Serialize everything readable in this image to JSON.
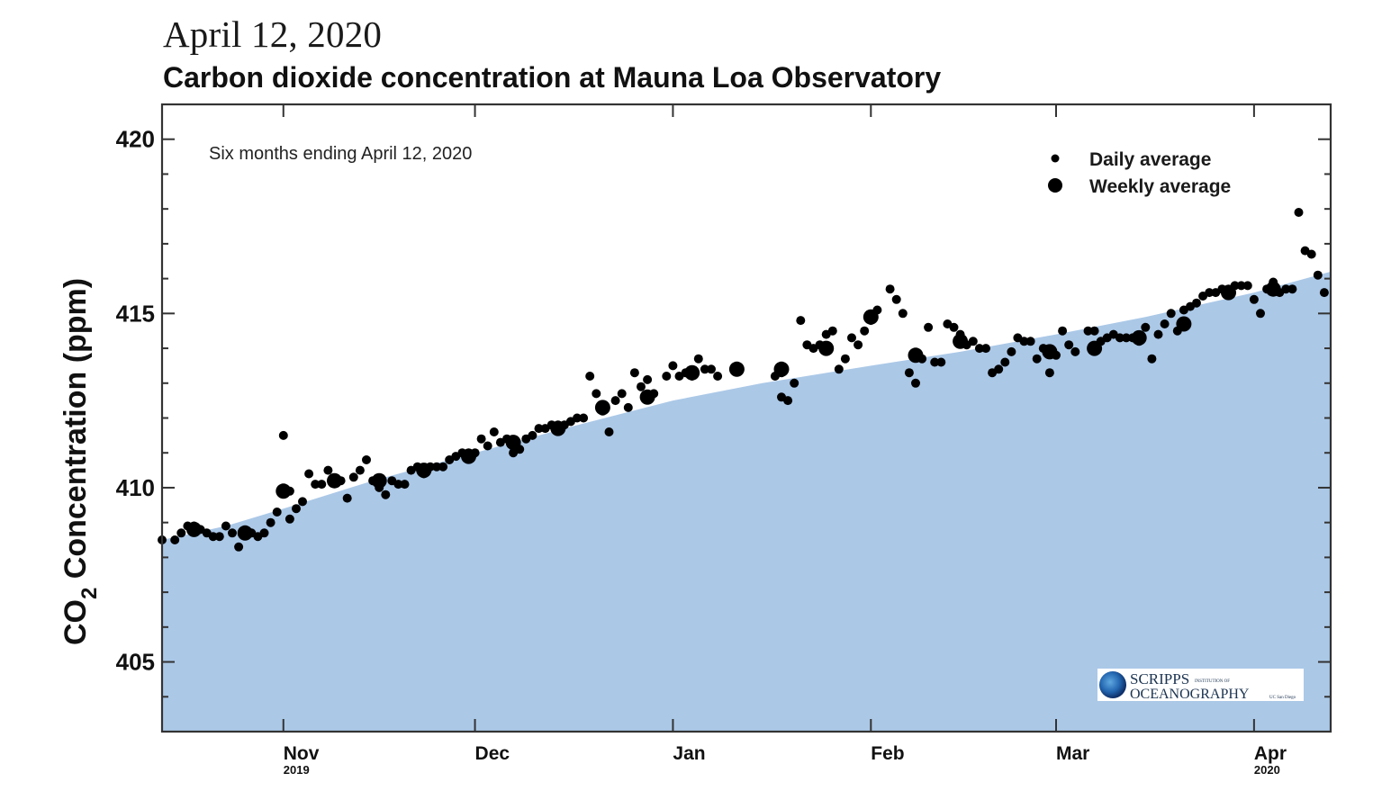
{
  "header": {
    "date": "April 12, 2020",
    "title": "Carbon dioxide concentration at Mauna Loa Observatory"
  },
  "colors": {
    "trend_fill": "#abc8e7",
    "points": "#000000",
    "axis": "#333333"
  },
  "logo": {
    "name": "SCRIPPS",
    "subtitle_small": "INSTITUTION OF",
    "line2": "OCEANOGRAPHY",
    "tag": "UC San Diego"
  },
  "chart_data": {
    "type": "scatter",
    "title": "Carbon dioxide concentration at Mauna Loa Observatory",
    "subtitle": "Six months ending April 12, 2020",
    "annotation": "Six months ending April 12, 2020",
    "xlabel": "",
    "ylabel": "CO2 Concentration (ppm)",
    "ylabel_parts": {
      "main": "CO",
      "sub": "2",
      "rest": " Concentration (ppm)"
    },
    "xlim": [
      "2019-10-13",
      "2020-04-13"
    ],
    "ylim": [
      403,
      421
    ],
    "yticks": [
      405,
      410,
      415,
      420
    ],
    "yminor_step": 1,
    "xticks": [
      {
        "date": "2019-11-01",
        "label": "Nov",
        "year": "2019"
      },
      {
        "date": "2019-12-01",
        "label": "Dec",
        "year": ""
      },
      {
        "date": "2020-01-01",
        "label": "Jan",
        "year": ""
      },
      {
        "date": "2020-02-01",
        "label": "Feb",
        "year": ""
      },
      {
        "date": "2020-03-01",
        "label": "Mar",
        "year": ""
      },
      {
        "date": "2020-04-01",
        "label": "Apr",
        "year": "2020"
      }
    ],
    "grid": false,
    "legend": {
      "position": "top-right",
      "entries": [
        {
          "label": "Daily average",
          "marker": "small-dot"
        },
        {
          "label": "Weekly average",
          "marker": "large-dot"
        }
      ]
    },
    "trend": {
      "name": "Seasonal trend (shaded)",
      "points": [
        [
          "2019-10-13",
          408.5
        ],
        [
          "2019-10-23",
          408.9
        ],
        [
          "2019-11-01",
          409.4
        ],
        [
          "2019-11-15",
          410.2
        ],
        [
          "2019-12-01",
          411.0
        ],
        [
          "2019-12-15",
          411.7
        ],
        [
          "2020-01-01",
          412.5
        ],
        [
          "2020-01-15",
          413.0
        ],
        [
          "2020-02-01",
          413.5
        ],
        [
          "2020-02-15",
          413.9
        ],
        [
          "2020-03-01",
          414.4
        ],
        [
          "2020-03-15",
          414.9
        ],
        [
          "2020-04-01",
          415.6
        ],
        [
          "2020-04-13",
          416.2
        ]
      ]
    },
    "series": [
      {
        "name": "Daily average",
        "points": [
          [
            "2019-10-13",
            408.5
          ],
          [
            "2019-10-15",
            408.5
          ],
          [
            "2019-10-16",
            408.7
          ],
          [
            "2019-10-17",
            408.9
          ],
          [
            "2019-10-18",
            408.9
          ],
          [
            "2019-10-19",
            408.8
          ],
          [
            "2019-10-20",
            408.7
          ],
          [
            "2019-10-21",
            408.6
          ],
          [
            "2019-10-22",
            408.6
          ],
          [
            "2019-10-23",
            408.9
          ],
          [
            "2019-10-24",
            408.7
          ],
          [
            "2019-10-25",
            408.3
          ],
          [
            "2019-10-26",
            408.7
          ],
          [
            "2019-10-27",
            408.7
          ],
          [
            "2019-10-28",
            408.6
          ],
          [
            "2019-10-29",
            408.7
          ],
          [
            "2019-10-30",
            409.0
          ],
          [
            "2019-10-31",
            409.3
          ],
          [
            "2019-11-01",
            409.9
          ],
          [
            "2019-11-01",
            411.5
          ],
          [
            "2019-11-02",
            409.9
          ],
          [
            "2019-11-02",
            409.1
          ],
          [
            "2019-11-03",
            409.4
          ],
          [
            "2019-11-04",
            409.6
          ],
          [
            "2019-11-05",
            410.4
          ],
          [
            "2019-11-06",
            410.1
          ],
          [
            "2019-11-07",
            410.1
          ],
          [
            "2019-11-08",
            410.5
          ],
          [
            "2019-11-09",
            410.2
          ],
          [
            "2019-11-10",
            410.2
          ],
          [
            "2019-11-11",
            409.7
          ],
          [
            "2019-11-12",
            410.3
          ],
          [
            "2019-11-13",
            410.5
          ],
          [
            "2019-11-14",
            410.8
          ],
          [
            "2019-11-15",
            410.2
          ],
          [
            "2019-11-16",
            410.0
          ],
          [
            "2019-11-17",
            409.8
          ],
          [
            "2019-11-18",
            410.2
          ],
          [
            "2019-11-19",
            410.1
          ],
          [
            "2019-11-20",
            410.1
          ],
          [
            "2019-11-21",
            410.5
          ],
          [
            "2019-11-22",
            410.6
          ],
          [
            "2019-11-23",
            410.4
          ],
          [
            "2019-11-24",
            410.6
          ],
          [
            "2019-11-25",
            410.6
          ],
          [
            "2019-11-26",
            410.6
          ],
          [
            "2019-11-27",
            410.8
          ],
          [
            "2019-11-28",
            410.9
          ],
          [
            "2019-11-29",
            411.0
          ],
          [
            "2019-11-30",
            411.0
          ],
          [
            "2019-12-01",
            411.0
          ],
          [
            "2019-12-02",
            411.4
          ],
          [
            "2019-12-03",
            411.2
          ],
          [
            "2019-12-04",
            411.6
          ],
          [
            "2019-12-05",
            411.3
          ],
          [
            "2019-12-06",
            411.4
          ],
          [
            "2019-12-07",
            411.0
          ],
          [
            "2019-12-08",
            411.1
          ],
          [
            "2019-12-09",
            411.4
          ],
          [
            "2019-12-10",
            411.5
          ],
          [
            "2019-12-11",
            411.7
          ],
          [
            "2019-12-12",
            411.7
          ],
          [
            "2019-12-13",
            411.8
          ],
          [
            "2019-12-14",
            411.8
          ],
          [
            "2019-12-15",
            411.8
          ],
          [
            "2019-12-16",
            411.9
          ],
          [
            "2019-12-17",
            412.0
          ],
          [
            "2019-12-18",
            412.0
          ],
          [
            "2019-12-19",
            413.2
          ],
          [
            "2019-12-20",
            412.7
          ],
          [
            "2019-12-21",
            412.2
          ],
          [
            "2019-12-22",
            411.6
          ],
          [
            "2019-12-23",
            412.5
          ],
          [
            "2019-12-24",
            412.7
          ],
          [
            "2019-12-25",
            412.3
          ],
          [
            "2019-12-26",
            413.3
          ],
          [
            "2019-12-27",
            412.9
          ],
          [
            "2019-12-28",
            413.1
          ],
          [
            "2019-12-29",
            412.7
          ],
          [
            "2019-12-31",
            413.2
          ],
          [
            "2020-01-01",
            413.5
          ],
          [
            "2020-01-02",
            413.2
          ],
          [
            "2020-01-03",
            413.3
          ],
          [
            "2020-01-04",
            413.2
          ],
          [
            "2020-01-05",
            413.7
          ],
          [
            "2020-01-06",
            413.4
          ],
          [
            "2020-01-07",
            413.4
          ],
          [
            "2020-01-08",
            413.2
          ],
          [
            "2020-01-17",
            413.2
          ],
          [
            "2020-01-18",
            412.6
          ],
          [
            "2020-01-18",
            413.3
          ],
          [
            "2020-01-19",
            412.5
          ],
          [
            "2020-01-20",
            413.0
          ],
          [
            "2020-01-21",
            414.8
          ],
          [
            "2020-01-22",
            414.1
          ],
          [
            "2020-01-23",
            414.0
          ],
          [
            "2020-01-24",
            414.1
          ],
          [
            "2020-01-25",
            414.4
          ],
          [
            "2020-01-26",
            414.5
          ],
          [
            "2020-01-27",
            413.4
          ],
          [
            "2020-01-28",
            413.7
          ],
          [
            "2020-01-29",
            414.3
          ],
          [
            "2020-01-30",
            414.1
          ],
          [
            "2020-01-31",
            414.5
          ],
          [
            "2020-02-01",
            414.8
          ],
          [
            "2020-02-02",
            415.1
          ],
          [
            "2020-02-04",
            415.7
          ],
          [
            "2020-02-05",
            415.4
          ],
          [
            "2020-02-06",
            415.0
          ],
          [
            "2020-02-07",
            413.3
          ],
          [
            "2020-02-08",
            413.0
          ],
          [
            "2020-02-09",
            413.7
          ],
          [
            "2020-02-10",
            414.6
          ],
          [
            "2020-02-11",
            413.6
          ],
          [
            "2020-02-12",
            413.6
          ],
          [
            "2020-02-13",
            414.7
          ],
          [
            "2020-02-14",
            414.6
          ],
          [
            "2020-02-15",
            414.4
          ],
          [
            "2020-02-16",
            414.1
          ],
          [
            "2020-02-17",
            414.2
          ],
          [
            "2020-02-18",
            414.0
          ],
          [
            "2020-02-19",
            414.0
          ],
          [
            "2020-02-20",
            413.3
          ],
          [
            "2020-02-21",
            413.4
          ],
          [
            "2020-02-22",
            413.6
          ],
          [
            "2020-02-23",
            413.9
          ],
          [
            "2020-02-24",
            414.3
          ],
          [
            "2020-02-25",
            414.2
          ],
          [
            "2020-02-26",
            414.2
          ],
          [
            "2020-02-27",
            413.7
          ],
          [
            "2020-02-28",
            414.0
          ],
          [
            "2020-02-29",
            413.3
          ],
          [
            "2020-03-01",
            413.8
          ],
          [
            "2020-03-02",
            414.5
          ],
          [
            "2020-03-03",
            414.1
          ],
          [
            "2020-03-04",
            413.9
          ],
          [
            "2020-03-06",
            414.5
          ],
          [
            "2020-03-07",
            414.5
          ],
          [
            "2020-03-08",
            414.2
          ],
          [
            "2020-03-09",
            414.3
          ],
          [
            "2020-03-10",
            414.4
          ],
          [
            "2020-03-11",
            414.3
          ],
          [
            "2020-03-12",
            414.3
          ],
          [
            "2020-03-13",
            414.3
          ],
          [
            "2020-03-14",
            414.2
          ],
          [
            "2020-03-15",
            414.6
          ],
          [
            "2020-03-16",
            413.7
          ],
          [
            "2020-03-17",
            414.4
          ],
          [
            "2020-03-18",
            414.7
          ],
          [
            "2020-03-19",
            415.0
          ],
          [
            "2020-03-20",
            414.5
          ],
          [
            "2020-03-21",
            415.1
          ],
          [
            "2020-03-22",
            415.2
          ],
          [
            "2020-03-23",
            415.3
          ],
          [
            "2020-03-24",
            415.5
          ],
          [
            "2020-03-25",
            415.6
          ],
          [
            "2020-03-26",
            415.6
          ],
          [
            "2020-03-27",
            415.7
          ],
          [
            "2020-03-28",
            415.7
          ],
          [
            "2020-03-29",
            415.8
          ],
          [
            "2020-03-30",
            415.8
          ],
          [
            "2020-03-31",
            415.8
          ],
          [
            "2020-04-01",
            415.4
          ],
          [
            "2020-04-02",
            415.0
          ],
          [
            "2020-04-03",
            415.7
          ],
          [
            "2020-04-04",
            415.9
          ],
          [
            "2020-04-05",
            415.6
          ],
          [
            "2020-04-06",
            415.7
          ],
          [
            "2020-04-07",
            415.7
          ],
          [
            "2020-04-08",
            417.9
          ],
          [
            "2020-04-09",
            416.8
          ],
          [
            "2020-04-10",
            416.7
          ],
          [
            "2020-04-11",
            416.1
          ],
          [
            "2020-04-12",
            415.6
          ]
        ]
      },
      {
        "name": "Weekly average",
        "points": [
          [
            "2019-10-18",
            408.8
          ],
          [
            "2019-10-26",
            408.7
          ],
          [
            "2019-11-01",
            409.9
          ],
          [
            "2019-11-09",
            410.2
          ],
          [
            "2019-11-16",
            410.2
          ],
          [
            "2019-11-23",
            410.5
          ],
          [
            "2019-11-30",
            410.9
          ],
          [
            "2019-12-07",
            411.3
          ],
          [
            "2019-12-14",
            411.7
          ],
          [
            "2019-12-21",
            412.3
          ],
          [
            "2019-12-28",
            412.6
          ],
          [
            "2020-01-04",
            413.3
          ],
          [
            "2020-01-11",
            413.4
          ],
          [
            "2020-01-18",
            413.4
          ],
          [
            "2020-01-25",
            414.0
          ],
          [
            "2020-02-01",
            414.9
          ],
          [
            "2020-02-08",
            413.8
          ],
          [
            "2020-02-15",
            414.2
          ],
          [
            "2020-02-29",
            413.9
          ],
          [
            "2020-03-07",
            414.0
          ],
          [
            "2020-03-14",
            414.3
          ],
          [
            "2020-03-21",
            414.7
          ],
          [
            "2020-03-28",
            415.6
          ],
          [
            "2020-04-04",
            415.7
          ]
        ]
      }
    ]
  }
}
